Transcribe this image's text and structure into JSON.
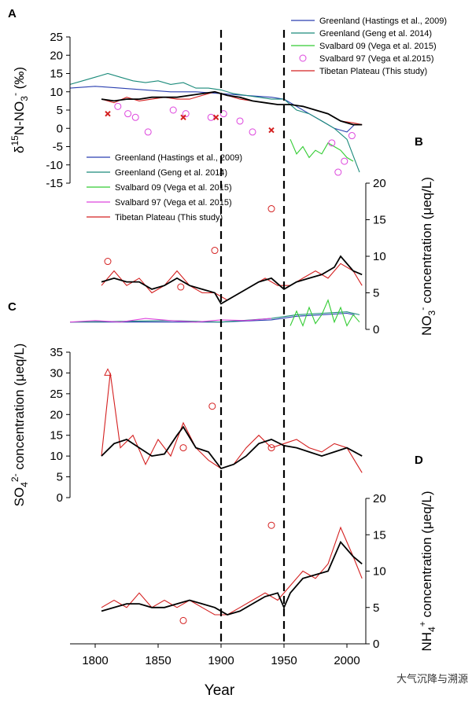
{
  "figure": {
    "xlabel": "Year",
    "xticks": [
      1800,
      1850,
      1900,
      1950,
      2000
    ],
    "xlim": [
      1780,
      2015
    ],
    "vlines": [
      1900,
      1950
    ],
    "watermark": "大气沉降与溯源"
  },
  "chart_data": [
    {
      "type": "line",
      "panel": "A",
      "ylabel_main": "δ",
      "ylabel_sup": "15",
      "ylabel_rest": "N-NO",
      "ylabel_sub": "3",
      "ylabel_sup2": "-",
      "ylabel_unit": " (‰)",
      "yticks": [
        25,
        20,
        15,
        10,
        5,
        0,
        -5,
        -10,
        -15
      ],
      "ylim": [
        -15,
        25
      ],
      "legend": [
        "Greenland (Hastings et al., 2009)",
        "Greenland (Geng et al. 2014)",
        "Svalbard 09 (Vega et al. 2015)",
        "Svalbard 97 (Vega et al.2015)",
        "Tibetan Plateau (This study)"
      ],
      "series": [
        {
          "name": "Greenland (Hastings et al., 2009)",
          "color": "#2a3fb0",
          "x": [
            1780,
            1800,
            1820,
            1840,
            1860,
            1880,
            1900,
            1920,
            1940,
            1950,
            1960,
            1970,
            1980,
            1990,
            2000,
            2006
          ],
          "y": [
            11,
            11.5,
            11,
            10.5,
            10,
            10,
            9.5,
            9,
            8.5,
            8,
            6,
            4,
            2,
            0,
            -1,
            1
          ]
        },
        {
          "name": "Greenland (Geng et al. 2014)",
          "color": "#1a8a7a",
          "x": [
            1780,
            1790,
            1800,
            1810,
            1820,
            1830,
            1840,
            1850,
            1860,
            1870,
            1880,
            1890,
            1900,
            1910,
            1920,
            1930,
            1940,
            1950,
            1960,
            1970,
            1980,
            1990,
            2000,
            2010
          ],
          "y": [
            12,
            13,
            14,
            15,
            14,
            13,
            12.5,
            13,
            12,
            12.5,
            11,
            11,
            10.5,
            9.5,
            9,
            8.5,
            8,
            8,
            5,
            4,
            2,
            0,
            -3,
            -12
          ]
        },
        {
          "name": "Svalbard 09 (Vega et al. 2015)",
          "color": "#33cc33",
          "x": [
            1955,
            1960,
            1965,
            1970,
            1975,
            1980,
            1985,
            1990,
            1995,
            2000,
            2005
          ],
          "y": [
            -3,
            -7,
            -5,
            -8,
            -6,
            -7,
            -4,
            -5,
            -6,
            -8,
            -9
          ]
        },
        {
          "name": "Tibetan Plateau (This study)",
          "color": "#d42020",
          "x": [
            1805,
            1815,
            1825,
            1835,
            1845,
            1855,
            1865,
            1875,
            1885,
            1895,
            1905,
            1915,
            1925,
            1935,
            1945,
            1955,
            1965,
            1975,
            1985,
            1995,
            2005,
            2012
          ],
          "y": [
            8,
            7,
            8.5,
            7.5,
            8,
            8.5,
            8,
            8,
            9,
            10,
            9,
            8,
            7.5,
            7,
            6.5,
            6.5,
            6,
            5,
            4,
            2,
            1.5,
            1
          ]
        },
        {
          "name": "Tibetan Plateau smooth",
          "color": "#000000",
          "x": [
            1805,
            1815,
            1825,
            1835,
            1845,
            1855,
            1865,
            1875,
            1885,
            1895,
            1905,
            1915,
            1925,
            1935,
            1945,
            1955,
            1965,
            1975,
            1985,
            1995,
            2005,
            2012
          ],
          "y": [
            8,
            7.5,
            8,
            8,
            8.5,
            8.5,
            8.5,
            9,
            9.5,
            10,
            9,
            8.5,
            7.5,
            7,
            6.5,
            6.5,
            6,
            5,
            4,
            2,
            1,
            1
          ]
        }
      ],
      "points": {
        "name": "Svalbard 97 (Vega et al.2015)",
        "color": "#dd44dd",
        "x": [
          1818,
          1826,
          1832,
          1842,
          1862,
          1872,
          1892,
          1902,
          1915,
          1925,
          1988,
          1993,
          1998,
          2004
        ],
        "y": [
          6,
          4,
          3,
          -1,
          5,
          4,
          3,
          4,
          2,
          -1,
          -4,
          -12,
          -9,
          -2
        ]
      },
      "markers": {
        "color": "#d42020",
        "x": [
          1810,
          1870,
          1896,
          1940
        ],
        "y": [
          4,
          3,
          3,
          -0.5
        ]
      }
    },
    {
      "type": "line",
      "panel": "B",
      "ylabel_main": "NO",
      "ylabel_sub": "3",
      "ylabel_sup": "-",
      "ylabel_rest": " concentration (μeq/L)",
      "yticks": [
        20,
        15,
        10,
        5,
        0
      ],
      "ylim": [
        0,
        20
      ],
      "legend": [
        "Greenland (Hastings et al., 2009)",
        "Greenland (Geng et al. 2014)",
        "Svalbard 09 (Vega et al. 2015)",
        "Svalbard 97 (Vega et al. 2015)",
        "Tibetan Plateau (This study)"
      ],
      "series": [
        {
          "name": "Greenland (Hastings et al., 2009)",
          "color": "#2a3fb0",
          "x": [
            1780,
            1820,
            1860,
            1900,
            1940,
            1960,
            1980,
            2000,
            2006
          ],
          "y": [
            1,
            1,
            1,
            1,
            1.3,
            1.8,
            2,
            2.2,
            2
          ]
        },
        {
          "name": "Greenland (Geng et al. 2014)",
          "color": "#1a8a7a",
          "x": [
            1780,
            1820,
            1860,
            1900,
            1940,
            1960,
            1980,
            2000,
            2010
          ],
          "y": [
            1,
            1.1,
            1.2,
            1,
            1.5,
            2,
            2.2,
            2.4,
            2
          ]
        },
        {
          "name": "Svalbard 09 (Vega et al. 2015)",
          "color": "#33cc33",
          "x": [
            1955,
            1960,
            1965,
            1970,
            1975,
            1980,
            1985,
            1990,
            1995,
            2000,
            2005,
            2010
          ],
          "y": [
            0.5,
            2.5,
            0.5,
            3,
            0.8,
            2,
            4,
            1,
            3,
            0.5,
            2,
            1
          ]
        },
        {
          "name": "Svalbard 97 (Vega et al. 2015)",
          "color": "#dd44dd",
          "x": [
            1780,
            1800,
            1820,
            1840,
            1860,
            1880,
            1900,
            1920,
            1940
          ],
          "y": [
            1,
            1.2,
            1,
            1.5,
            1.2,
            1,
            1.3,
            1.2,
            1.5
          ]
        },
        {
          "name": "Tibetan Plateau (This study)",
          "color": "#d42020",
          "x": [
            1805,
            1815,
            1825,
            1835,
            1845,
            1855,
            1865,
            1875,
            1885,
            1895,
            1905,
            1915,
            1925,
            1935,
            1945,
            1955,
            1965,
            1975,
            1985,
            1995,
            2005,
            2012
          ],
          "y": [
            6,
            8,
            6,
            7,
            5,
            6,
            8,
            6,
            5,
            5,
            4,
            5,
            6,
            7,
            6,
            6,
            7,
            8,
            7,
            9,
            8,
            6
          ]
        },
        {
          "name": "Tibetan Plateau smooth",
          "color": "#000000",
          "x": [
            1805,
            1815,
            1825,
            1835,
            1845,
            1855,
            1865,
            1875,
            1885,
            1895,
            1900,
            1910,
            1920,
            1930,
            1940,
            1950,
            1960,
            1970,
            1980,
            1990,
            1995,
            2005,
            2012
          ],
          "y": [
            6.5,
            7,
            6.5,
            6.5,
            5.5,
            6,
            7,
            6,
            5.5,
            5,
            3.5,
            4.5,
            5.5,
            6.5,
            7,
            5.5,
            6.5,
            7,
            7.5,
            8.5,
            10,
            8,
            7.5
          ]
        }
      ],
      "points": {
        "name": "Svalbard 97 points",
        "color": "#d42020",
        "x": [
          1810,
          1868,
          1895,
          1940
        ],
        "y": [
          9.3,
          5.8,
          10.8,
          16.5
        ]
      }
    },
    {
      "type": "line",
      "panel": "C",
      "ylabel_main": "SO",
      "ylabel_sub": "4",
      "ylabel_sup": "2-",
      "ylabel_rest": " concentration (μeq/L)",
      "yticks": [
        35,
        30,
        25,
        20,
        15,
        10,
        5,
        0
      ],
      "ylim": [
        0,
        35
      ],
      "series": [
        {
          "name": "Tibetan Plateau (This study)",
          "color": "#d42020",
          "x": [
            1805,
            1812,
            1820,
            1830,
            1840,
            1850,
            1860,
            1870,
            1880,
            1890,
            1900,
            1910,
            1920,
            1930,
            1940,
            1950,
            1960,
            1970,
            1980,
            1990,
            2000,
            2012
          ],
          "y": [
            10,
            30,
            12,
            15,
            8,
            14,
            10,
            18,
            12,
            9,
            7,
            8,
            12,
            15,
            12,
            13,
            14,
            12,
            11,
            13,
            12,
            6
          ]
        },
        {
          "name": "Tibetan Plateau smooth",
          "color": "#000000",
          "x": [
            1805,
            1815,
            1825,
            1835,
            1845,
            1855,
            1865,
            1870,
            1880,
            1890,
            1900,
            1910,
            1920,
            1930,
            1940,
            1950,
            1960,
            1970,
            1980,
            1990,
            2000,
            2012
          ],
          "y": [
            10,
            13,
            14,
            12,
            10,
            10.5,
            15,
            17,
            12,
            11,
            7,
            8,
            10,
            13,
            14,
            12.5,
            12,
            11,
            10,
            11,
            12,
            10
          ]
        }
      ],
      "points": {
        "name": "Svalbard 97 points",
        "color": "#d42020",
        "x": [
          1870,
          1893,
          1940
        ],
        "y": [
          12,
          22,
          12
        ]
      },
      "triangle": {
        "x": 1810,
        "y": 30
      }
    },
    {
      "type": "line",
      "panel": "D",
      "ylabel_main": "NH",
      "ylabel_sub": "4",
      "ylabel_sup": "+",
      "ylabel_rest": " concentration (μeq/L)",
      "yticks": [
        20,
        15,
        10,
        5,
        0
      ],
      "ylim": [
        0,
        20
      ],
      "series": [
        {
          "name": "Tibetan Plateau (This study)",
          "color": "#d42020",
          "x": [
            1805,
            1815,
            1825,
            1835,
            1845,
            1855,
            1865,
            1875,
            1885,
            1895,
            1905,
            1915,
            1925,
            1935,
            1945,
            1955,
            1965,
            1975,
            1985,
            1995,
            2005,
            2012
          ],
          "y": [
            5,
            6,
            5,
            7,
            5,
            6,
            5,
            6,
            5,
            4,
            4,
            5,
            6,
            7,
            6,
            8,
            10,
            9,
            11,
            16,
            12,
            9
          ]
        },
        {
          "name": "Tibetan Plateau smooth",
          "color": "#000000",
          "x": [
            1805,
            1815,
            1825,
            1835,
            1845,
            1855,
            1865,
            1875,
            1885,
            1895,
            1905,
            1915,
            1925,
            1935,
            1945,
            1950,
            1955,
            1965,
            1975,
            1985,
            1995,
            2005,
            2012
          ],
          "y": [
            4.5,
            5,
            5.5,
            5.5,
            5,
            5,
            5.5,
            6,
            5.5,
            5,
            4,
            4.5,
            5.5,
            6.5,
            7,
            5,
            7,
            9,
            9.5,
            10,
            14,
            12,
            11
          ]
        }
      ],
      "points": {
        "name": "Svalbard 97 points",
        "color": "#d42020",
        "x": [
          1870,
          1940
        ],
        "y": [
          3.2,
          16.3
        ]
      }
    }
  ]
}
